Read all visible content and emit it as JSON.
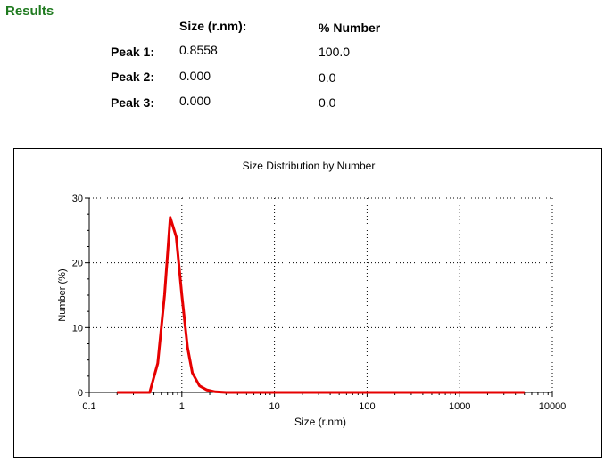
{
  "results": {
    "title": "Results",
    "col_size": "Size (r.nm):",
    "col_number": "% Number",
    "rows": [
      {
        "label": "Peak 1:",
        "size": "0.8558",
        "number": "100.0"
      },
      {
        "label": "Peak 2:",
        "size": "0.000",
        "number": "0.0"
      },
      {
        "label": "Peak 3:",
        "size": "0.000",
        "number": "0.0"
      }
    ]
  },
  "colors": {
    "title": "#1f7a1f",
    "series": "#e60000"
  },
  "chart_data": {
    "type": "line",
    "title": "Size Distribution by Number",
    "xlabel": "Size (r.nm)",
    "ylabel": "Number (%)",
    "x_scale": "log",
    "xlim": [
      0.1,
      10000
    ],
    "ylim": [
      0,
      30
    ],
    "x_ticks": [
      "0.1",
      "1",
      "10",
      "100",
      "1000",
      "10000"
    ],
    "y_ticks": [
      "0",
      "10",
      "20",
      "30"
    ],
    "grid": true,
    "series": [
      {
        "x": [
          0.2,
          0.3,
          0.45,
          0.55,
          0.65,
          0.75,
          0.87,
          1.0,
          1.15,
          1.3,
          1.55,
          1.85,
          2.3,
          3.0,
          5000
        ],
        "values": [
          0,
          0,
          0,
          4.5,
          15,
          27,
          24,
          15,
          7,
          3,
          1,
          0.4,
          0.1,
          0,
          0
        ]
      }
    ]
  }
}
